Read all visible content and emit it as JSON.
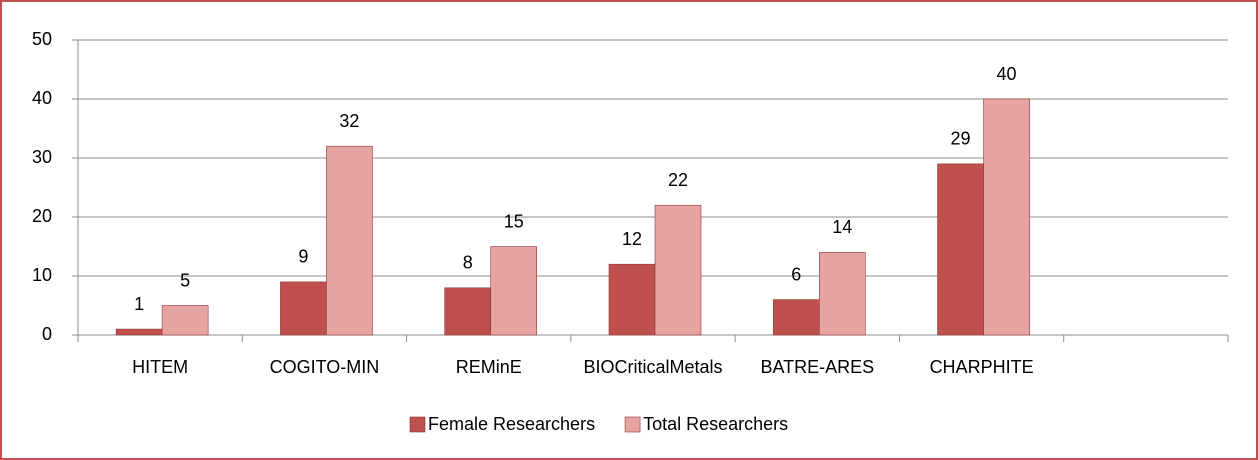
{
  "chart_data": {
    "type": "bar",
    "categories": [
      "HITEM",
      "COGITO-MIN",
      "REMinE",
      "BIOCriticalMetals",
      "BATRE-ARES",
      "CHARPHITE",
      null
    ],
    "series": [
      {
        "name": "Female Researchers",
        "color": "#c0504d",
        "values": [
          1,
          9,
          8,
          12,
          6,
          29,
          null
        ]
      },
      {
        "name": "Total Researchers",
        "color": "#e6a3a2",
        "values": [
          5,
          32,
          15,
          22,
          14,
          40,
          null
        ]
      }
    ],
    "ylim": [
      0,
      50
    ],
    "yticks": [
      0,
      10,
      20,
      30,
      40,
      50
    ],
    "grid": true,
    "legend": "bottom"
  }
}
